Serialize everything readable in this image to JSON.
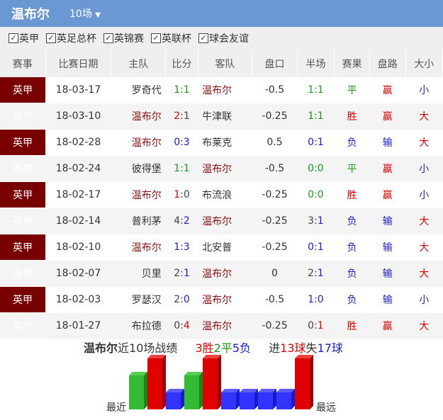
{
  "header": {
    "title": "温布尔",
    "count_select": "10场"
  },
  "filters": [
    "英甲",
    "英足总杯",
    "英锦赛",
    "英联杯",
    "球会友谊"
  ],
  "columns": [
    "赛事",
    "比赛日期",
    "主队",
    "比分",
    "客队",
    "盘口",
    "半场",
    "赛果",
    "盘路",
    "大小"
  ],
  "colors": {
    "red": "#e00000",
    "green": "#1a9a1a",
    "blue": "#1c1cd0",
    "team": "#8b1010",
    "gray": "#444"
  },
  "rows": [
    {
      "league": "英甲",
      "date": "18-03-17",
      "home": "罗奇代",
      "score": [
        {
          "t": "1:1",
          "c": "green"
        }
      ],
      "away": "温布尔",
      "hcp": "-0.5",
      "half": [
        {
          "t": "1:1",
          "c": "green"
        }
      ],
      "result": "平",
      "rc": "green",
      "pan": "赢",
      "pc": "red",
      "ou": "小",
      "oc": "blue"
    },
    {
      "league": "英甲",
      "date": "18-03-10",
      "home": "温布尔",
      "score": [
        {
          "t": "2",
          "c": "red"
        },
        {
          "t": ":1",
          "c": "gray"
        }
      ],
      "away": "牛津联",
      "hcp": "-0.25",
      "half": [
        {
          "t": "1:1",
          "c": "green"
        }
      ],
      "result": "胜",
      "rc": "red",
      "pan": "赢",
      "pc": "red",
      "ou": "大",
      "oc": "red"
    },
    {
      "league": "英甲",
      "date": "18-02-28",
      "home": "温布尔",
      "score": [
        {
          "t": "0:3",
          "c": "blue"
        }
      ],
      "away": "布莱克",
      "hcp": "0.5",
      "half": [
        {
          "t": "0:1",
          "c": "blue"
        }
      ],
      "result": "负",
      "rc": "blue",
      "pan": "输",
      "pc": "blue",
      "ou": "大",
      "oc": "red"
    },
    {
      "league": "英甲",
      "date": "18-02-24",
      "home": "彼得堡",
      "score": [
        {
          "t": "1:1",
          "c": "green"
        }
      ],
      "away": "温布尔",
      "hcp": "-0.5",
      "half": [
        {
          "t": "0:0",
          "c": "green"
        }
      ],
      "result": "平",
      "rc": "green",
      "pan": "赢",
      "pc": "red",
      "ou": "小",
      "oc": "blue"
    },
    {
      "league": "英甲",
      "date": "18-02-17",
      "home": "温布尔",
      "score": [
        {
          "t": "1",
          "c": "red"
        },
        {
          "t": ":0",
          "c": "gray"
        }
      ],
      "away": "布流浪",
      "hcp": "-0.25",
      "half": [
        {
          "t": "0:0",
          "c": "green"
        }
      ],
      "result": "胜",
      "rc": "red",
      "pan": "赢",
      "pc": "red",
      "ou": "小",
      "oc": "blue"
    },
    {
      "league": "英甲",
      "date": "18-02-14",
      "home": "普利茅",
      "score": [
        {
          "t": "4:",
          "c": "gray"
        },
        {
          "t": "2",
          "c": "blue"
        }
      ],
      "away": "温布尔",
      "hcp": "-0.25",
      "half": [
        {
          "t": "3:",
          "c": "gray"
        },
        {
          "t": "1",
          "c": "blue"
        }
      ],
      "result": "负",
      "rc": "blue",
      "pan": "输",
      "pc": "blue",
      "ou": "大",
      "oc": "red"
    },
    {
      "league": "英甲",
      "date": "18-02-10",
      "home": "温布尔",
      "score": [
        {
          "t": "1:3",
          "c": "blue"
        }
      ],
      "away": "北安普",
      "hcp": "-0.25",
      "half": [
        {
          "t": "0:1",
          "c": "blue"
        }
      ],
      "result": "负",
      "rc": "blue",
      "pan": "输",
      "pc": "blue",
      "ou": "大",
      "oc": "red"
    },
    {
      "league": "英甲",
      "date": "18-02-07",
      "home": "贝里",
      "score": [
        {
          "t": "2:",
          "c": "gray"
        },
        {
          "t": "1",
          "c": "blue"
        }
      ],
      "away": "温布尔",
      "hcp": "0",
      "half": [
        {
          "t": "2:",
          "c": "gray"
        },
        {
          "t": "1",
          "c": "blue"
        }
      ],
      "result": "负",
      "rc": "blue",
      "pan": "输",
      "pc": "blue",
      "ou": "大",
      "oc": "red"
    },
    {
      "league": "英甲",
      "date": "18-02-03",
      "home": "罗瑟汉",
      "score": [
        {
          "t": "2:",
          "c": "gray"
        },
        {
          "t": "0",
          "c": "blue"
        }
      ],
      "away": "温布尔",
      "hcp": "-0.5",
      "half": [
        {
          "t": "1:0",
          "c": "blue"
        }
      ],
      "result": "负",
      "rc": "blue",
      "pan": "输",
      "pc": "blue",
      "ou": "小",
      "oc": "blue"
    },
    {
      "league": "英甲",
      "date": "18-01-27",
      "home": "布拉德",
      "score": [
        {
          "t": "0:",
          "c": "gray"
        },
        {
          "t": "4",
          "c": "red"
        }
      ],
      "away": "温布尔",
      "hcp": "-0.25",
      "half": [
        {
          "t": "0:",
          "c": "gray"
        },
        {
          "t": "1",
          "c": "red"
        }
      ],
      "result": "胜",
      "rc": "red",
      "pan": "赢",
      "pc": "red",
      "ou": "大",
      "oc": "red"
    }
  ],
  "summary": {
    "team": "温布尔",
    "text": "近10场战绩",
    "wins": "3胜",
    "draws": "2平",
    "losses": "5负",
    "scored_pre": "进",
    "scored": "13球",
    "conceded_pre": "失",
    "conceded": "17球"
  },
  "form_chart": {
    "label_recent": "最近",
    "label_old": "最远",
    "results": [
      "平",
      "胜",
      "负",
      "平",
      "胜",
      "负",
      "负",
      "负",
      "负",
      "胜"
    ]
  }
}
